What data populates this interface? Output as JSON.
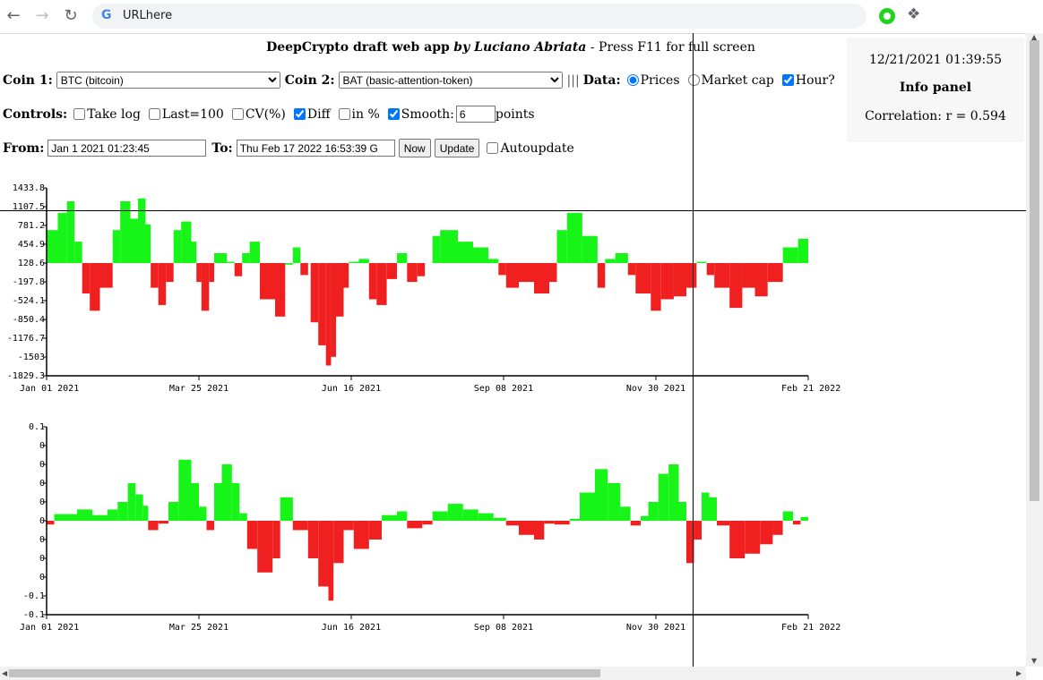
{
  "browser": {
    "url": "URLhere"
  },
  "header": {
    "app_name": "DeepCrypto draft web app",
    "by": "by Luciano Abriata",
    "press": "- Press F11 for full screen"
  },
  "coins": {
    "coin1_label": "Coin 1:",
    "coin1_value": "BTC (bitcoin)",
    "coin2_label": "Coin 2:",
    "coin2_value": "BAT (basic-attention-token)",
    "sep": "|||",
    "data_label": "Data:",
    "prices": "Prices",
    "market_cap": "Market cap",
    "hour": "Hour?"
  },
  "controls": {
    "label": "Controls:",
    "take_log": "Take log",
    "last100": "Last=100",
    "cv": "CV(%)",
    "diff": "Diff",
    "in_pct": "in %",
    "smooth": "Smooth:",
    "smooth_value": "6",
    "points": "points"
  },
  "range": {
    "from_label": "From:",
    "from_value": "Jan 1 2021 01:23:45",
    "to_label": "To:",
    "to_value": "Thu Feb 17 2022 16:53:39 G",
    "now": "Now",
    "update": "Update",
    "autoupdate": "Autoupdate"
  },
  "info": {
    "datetime": "12/21/2021 01:39:55",
    "heading": "Info panel",
    "correlation": "Correlation: r = 0.594"
  },
  "colors": {
    "positive": "#17f417",
    "negative": "#f02020"
  },
  "chart_data": [
    {
      "type": "bar",
      "ylim": [
        -1829.3,
        1433.8
      ],
      "y_ticks": [
        "1433.8",
        "1107.5",
        "781.2",
        "454.9",
        "128.6",
        "-197.8",
        "-524.1",
        "-850.4",
        "-1176.7",
        "-1503",
        "-1829.3"
      ],
      "x_ticks": [
        "Jan 01 2021",
        "Mar 25 2021",
        "Jun 16 2021",
        "Sep 08 2021",
        "Nov 30 2021",
        "Feb 21 2022"
      ],
      "baseline": 128.6,
      "segments": [
        [
          0,
          0.22,
          700
        ],
        [
          0.22,
          0.4,
          1000
        ],
        [
          0.4,
          0.55,
          1200
        ],
        [
          0.55,
          0.7,
          500
        ],
        [
          0.7,
          0.85,
          -400
        ],
        [
          0.85,
          1.05,
          -700
        ],
        [
          1.05,
          1.3,
          -300
        ],
        [
          1.3,
          1.45,
          700
        ],
        [
          1.45,
          1.65,
          1200
        ],
        [
          1.65,
          1.8,
          900
        ],
        [
          1.8,
          1.95,
          1250
        ],
        [
          1.95,
          2.05,
          800
        ],
        [
          2.05,
          2.2,
          -300
        ],
        [
          2.2,
          2.35,
          -600
        ],
        [
          2.35,
          2.5,
          -200
        ],
        [
          2.5,
          2.65,
          700
        ],
        [
          2.65,
          2.85,
          850
        ],
        [
          2.85,
          2.95,
          500
        ],
        [
          2.95,
          3.05,
          -200
        ],
        [
          3.05,
          3.2,
          -700
        ],
        [
          3.2,
          3.3,
          -200
        ],
        [
          3.3,
          3.55,
          300
        ],
        [
          3.55,
          3.7,
          150
        ],
        [
          3.7,
          3.85,
          -100
        ],
        [
          3.85,
          4.0,
          300
        ],
        [
          4.0,
          4.2,
          500
        ],
        [
          4.2,
          4.5,
          -500
        ],
        [
          4.5,
          4.7,
          -800
        ],
        [
          4.7,
          4.85,
          100
        ],
        [
          4.85,
          5.0,
          400
        ],
        [
          5.0,
          5.15,
          -80
        ],
        [
          5.2,
          5.35,
          -900
        ],
        [
          5.35,
          5.5,
          -1300
        ],
        [
          5.5,
          5.6,
          -1650
        ],
        [
          5.6,
          5.7,
          -1500
        ],
        [
          5.7,
          5.85,
          -800
        ],
        [
          5.85,
          5.95,
          -300
        ],
        [
          5.95,
          6.15,
          150
        ],
        [
          6.15,
          6.35,
          200
        ],
        [
          6.35,
          6.5,
          -500
        ],
        [
          6.5,
          6.7,
          -600
        ],
        [
          6.7,
          6.9,
          -150
        ],
        [
          6.9,
          7.1,
          300
        ],
        [
          7.1,
          7.3,
          -200
        ],
        [
          7.3,
          7.45,
          -100
        ],
        [
          7.6,
          7.75,
          600
        ],
        [
          7.75,
          8.1,
          700
        ],
        [
          8.1,
          8.4,
          500
        ],
        [
          8.4,
          8.7,
          400
        ],
        [
          8.7,
          8.9,
          200
        ],
        [
          8.9,
          9.05,
          -80
        ],
        [
          9.05,
          9.3,
          -300
        ],
        [
          9.3,
          9.6,
          -200
        ],
        [
          9.6,
          9.9,
          -400
        ],
        [
          9.9,
          10.05,
          -200
        ],
        [
          10.05,
          10.25,
          700
        ],
        [
          10.25,
          10.55,
          1000
        ],
        [
          10.55,
          10.85,
          600
        ],
        [
          10.85,
          11.0,
          -300
        ],
        [
          11.0,
          11.2,
          200
        ],
        [
          11.2,
          11.45,
          300
        ],
        [
          11.45,
          11.6,
          -80
        ],
        [
          11.6,
          11.9,
          -400
        ],
        [
          11.9,
          12.1,
          -700
        ],
        [
          12.1,
          12.35,
          -500
        ],
        [
          12.35,
          12.6,
          -450
        ],
        [
          12.6,
          12.8,
          -300
        ],
        [
          12.8,
          13.0,
          150
        ],
        [
          13.0,
          13.15,
          -80
        ],
        [
          13.15,
          13.45,
          -300
        ],
        [
          13.45,
          13.7,
          -650
        ],
        [
          13.7,
          13.95,
          -300
        ],
        [
          13.95,
          14.2,
          -450
        ],
        [
          14.2,
          14.5,
          -200
        ],
        [
          14.5,
          14.8,
          400
        ],
        [
          14.8,
          15.0,
          550
        ]
      ]
    },
    {
      "type": "bar",
      "ylim": [
        -0.1,
        0.1
      ],
      "y_ticks": [
        "0.1",
        "0",
        "0",
        "0",
        "0",
        "0",
        "0",
        "0",
        "0",
        "-0.1",
        "-0.1"
      ],
      "x_ticks": [
        "Jan 01 2021",
        "Mar 25 2021",
        "Jun 16 2021",
        "Sep 08 2021",
        "Nov 30 2021",
        "Feb 21 2022"
      ],
      "baseline": 0,
      "segments": [
        [
          0,
          0.15,
          -0.004
        ],
        [
          0.15,
          0.6,
          0.007
        ],
        [
          0.6,
          0.9,
          0.012
        ],
        [
          0.9,
          1.2,
          0.006
        ],
        [
          1.2,
          1.4,
          0.012
        ],
        [
          1.4,
          1.6,
          0.02
        ],
        [
          1.6,
          1.75,
          0.04
        ],
        [
          1.75,
          1.9,
          0.028
        ],
        [
          1.9,
          2.0,
          0.016
        ],
        [
          2.0,
          2.2,
          -0.01
        ],
        [
          2.2,
          2.4,
          -0.003
        ],
        [
          2.4,
          2.6,
          0.02
        ],
        [
          2.6,
          2.85,
          0.065
        ],
        [
          2.85,
          3.0,
          0.04
        ],
        [
          3.0,
          3.15,
          0.015
        ],
        [
          3.15,
          3.3,
          -0.01
        ],
        [
          3.3,
          3.45,
          0.04
        ],
        [
          3.45,
          3.65,
          0.06
        ],
        [
          3.65,
          3.8,
          0.04
        ],
        [
          3.8,
          3.95,
          0.008
        ],
        [
          3.95,
          4.15,
          -0.03
        ],
        [
          4.15,
          4.45,
          -0.055
        ],
        [
          4.45,
          4.6,
          -0.04
        ],
        [
          4.6,
          4.85,
          0.025
        ],
        [
          4.85,
          5.15,
          -0.01
        ],
        [
          5.15,
          5.35,
          -0.04
        ],
        [
          5.35,
          5.55,
          -0.07
        ],
        [
          5.55,
          5.65,
          -0.085
        ],
        [
          5.65,
          5.85,
          -0.045
        ],
        [
          5.85,
          6.05,
          -0.01
        ],
        [
          6.05,
          6.35,
          -0.03
        ],
        [
          6.35,
          6.6,
          -0.02
        ],
        [
          6.6,
          6.9,
          0.006
        ],
        [
          6.9,
          7.1,
          0.01
        ],
        [
          7.1,
          7.4,
          -0.008
        ],
        [
          7.4,
          7.6,
          -0.004
        ],
        [
          7.6,
          7.9,
          0.01
        ],
        [
          7.9,
          8.2,
          0.018
        ],
        [
          8.2,
          8.5,
          0.012
        ],
        [
          8.5,
          8.8,
          0.008
        ],
        [
          8.8,
          9.05,
          0.003
        ],
        [
          9.05,
          9.3,
          -0.005
        ],
        [
          9.3,
          9.6,
          -0.015
        ],
        [
          9.6,
          9.8,
          -0.02
        ],
        [
          9.8,
          10.0,
          -0.003
        ],
        [
          10.0,
          10.3,
          -0.004
        ],
        [
          10.3,
          10.5,
          0.002
        ],
        [
          10.5,
          10.8,
          0.03
        ],
        [
          10.8,
          11.05,
          0.055
        ],
        [
          11.05,
          11.3,
          0.04
        ],
        [
          11.3,
          11.5,
          0.015
        ],
        [
          11.5,
          11.7,
          -0.005
        ],
        [
          11.7,
          11.85,
          0.005
        ],
        [
          11.85,
          12.05,
          0.02
        ],
        [
          12.05,
          12.25,
          0.05
        ],
        [
          12.25,
          12.45,
          0.06
        ],
        [
          12.45,
          12.6,
          0.02
        ],
        [
          12.6,
          12.75,
          -0.045
        ],
        [
          12.75,
          12.9,
          -0.02
        ],
        [
          12.9,
          13.05,
          0.03
        ],
        [
          13.05,
          13.2,
          0.025
        ],
        [
          13.2,
          13.45,
          -0.005
        ],
        [
          13.45,
          13.75,
          -0.04
        ],
        [
          13.75,
          14.05,
          -0.035
        ],
        [
          14.05,
          14.3,
          -0.025
        ],
        [
          14.3,
          14.5,
          -0.015
        ],
        [
          14.5,
          14.7,
          0.01
        ],
        [
          14.7,
          14.85,
          -0.004
        ],
        [
          14.85,
          15.0,
          0.004
        ]
      ]
    }
  ]
}
